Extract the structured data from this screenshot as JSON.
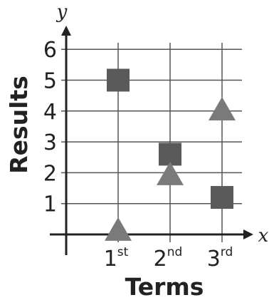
{
  "chart_data": {
    "type": "scatter",
    "xlabel": "Terms",
    "ylabel": "Results",
    "x_axis_symbol": "x",
    "y_axis_symbol": "y",
    "ylim": [
      0,
      6
    ],
    "y_ticks": [
      "1",
      "2",
      "3",
      "4",
      "5",
      "6"
    ],
    "categories": [
      {
        "base": "1",
        "suffix": "st"
      },
      {
        "base": "2",
        "suffix": "nd"
      },
      {
        "base": "3",
        "suffix": "rd"
      }
    ],
    "grid": true,
    "marker_color": "#5a5a5a",
    "triangle_color": "#7a7a7a",
    "series": [
      {
        "marker": "square",
        "values": [
          5,
          2.6,
          1.2
        ]
      },
      {
        "marker": "triangle",
        "values": [
          0.1,
          1.9,
          4
        ]
      }
    ]
  }
}
